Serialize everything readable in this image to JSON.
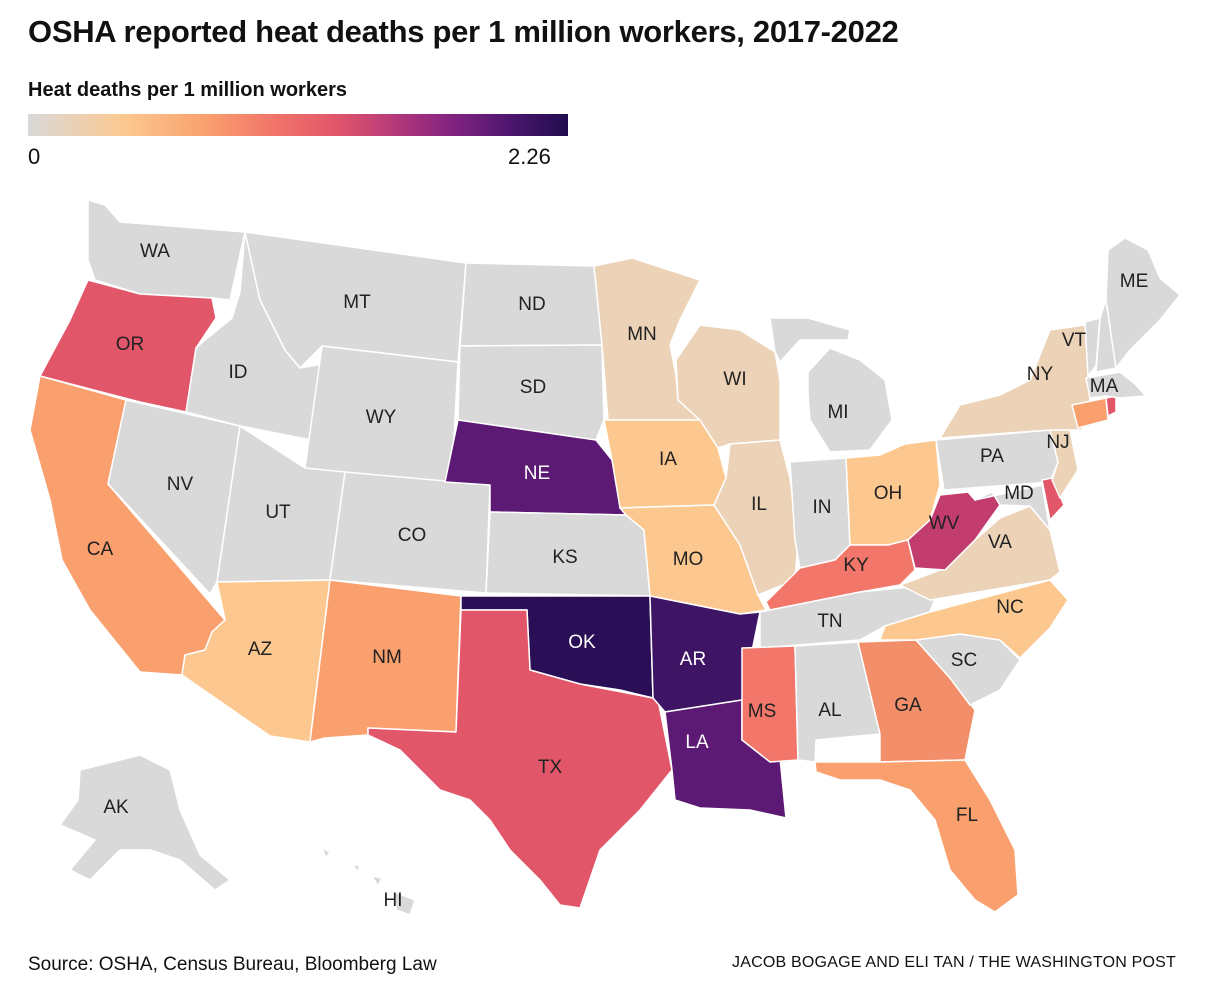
{
  "title": "OSHA reported heat deaths per 1 million workers, 2017-2022",
  "legend": {
    "title": "Heat deaths per 1 million workers",
    "min_label": "0",
    "max_label": "2.26",
    "scale_min": 0,
    "scale_max": 2.26,
    "colors": [
      "#d9d9d9",
      "#fcc88f",
      "#f9a06e",
      "#f2766a",
      "#e2566a",
      "#b5387a",
      "#852481",
      "#4e166f",
      "#200c4e"
    ]
  },
  "chart_data": {
    "type": "choropleth",
    "metric": "Heat deaths per 1 million workers",
    "range": [
      0,
      2.26
    ],
    "states": [
      {
        "code": "WA",
        "fill": "#d9d9d9",
        "value": 0
      },
      {
        "code": "OR",
        "fill": "#e2566a",
        "value": 1.2
      },
      {
        "code": "CA",
        "fill": "#f9a06e",
        "value": 0.5
      },
      {
        "code": "ID",
        "fill": "#d9d9d9",
        "value": 0
      },
      {
        "code": "NV",
        "fill": "#d9d9d9",
        "value": 0
      },
      {
        "code": "MT",
        "fill": "#d9d9d9",
        "value": 0
      },
      {
        "code": "WY",
        "fill": "#d9d9d9",
        "value": 0
      },
      {
        "code": "UT",
        "fill": "#d9d9d9",
        "value": 0
      },
      {
        "code": "AZ",
        "fill": "#fcc88f",
        "value": 0.35
      },
      {
        "code": "CO",
        "fill": "#d9d9d9",
        "value": 0
      },
      {
        "code": "NM",
        "fill": "#f9a06e",
        "value": 0.55
      },
      {
        "code": "ND",
        "fill": "#d9d9d9",
        "value": 0
      },
      {
        "code": "SD",
        "fill": "#d9d9d9",
        "value": 0
      },
      {
        "code": "NE",
        "fill": "#5c1a75",
        "value": 1.9
      },
      {
        "code": "KS",
        "fill": "#d9d9d9",
        "value": 0
      },
      {
        "code": "OK",
        "fill": "#2a0f57",
        "value": 2.26
      },
      {
        "code": "TX",
        "fill": "#e2566a",
        "value": 1.2
      },
      {
        "code": "MN",
        "fill": "#ecd3b8",
        "value": 0.15
      },
      {
        "code": "IA",
        "fill": "#fcc88f",
        "value": 0.35
      },
      {
        "code": "MO",
        "fill": "#fcc88f",
        "value": 0.35
      },
      {
        "code": "AR",
        "fill": "#3e1565",
        "value": 2.1
      },
      {
        "code": "LA",
        "fill": "#5c1a75",
        "value": 1.9
      },
      {
        "code": "WI",
        "fill": "#ecd3b8",
        "value": 0.15
      },
      {
        "code": "IL",
        "fill": "#ecd3b8",
        "value": 0.15
      },
      {
        "code": "MI",
        "fill": "#d9d9d9",
        "value": 0
      },
      {
        "code": "IN",
        "fill": "#d9d9d9",
        "value": 0
      },
      {
        "code": "OH",
        "fill": "#fcc88f",
        "value": 0.35
      },
      {
        "code": "KY",
        "fill": "#f2766a",
        "value": 0.8
      },
      {
        "code": "TN",
        "fill": "#d9d9d9",
        "value": 0
      },
      {
        "code": "MS",
        "fill": "#f2766a",
        "value": 0.8
      },
      {
        "code": "AL",
        "fill": "#d9d9d9",
        "value": 0
      },
      {
        "code": "GA",
        "fill": "#f28e6a",
        "value": 0.7
      },
      {
        "code": "FL",
        "fill": "#f9a06e",
        "value": 0.55
      },
      {
        "code": "SC",
        "fill": "#d9d9d9",
        "value": 0
      },
      {
        "code": "NC",
        "fill": "#fcc88f",
        "value": 0.4
      },
      {
        "code": "VA",
        "fill": "#ecd3b8",
        "value": 0.15
      },
      {
        "code": "WV",
        "fill": "#c23d6e",
        "value": 1.4
      },
      {
        "code": "PA",
        "fill": "#d9d9d9",
        "value": 0
      },
      {
        "code": "MD",
        "fill": "#d9d9d9",
        "value": 0
      },
      {
        "code": "DE",
        "fill": "#e2566a",
        "value": 1.2
      },
      {
        "code": "NJ",
        "fill": "#ecd3b8",
        "value": 0.15
      },
      {
        "code": "NY",
        "fill": "#ecd3b8",
        "value": 0.15
      },
      {
        "code": "CT",
        "fill": "#f9a06e",
        "value": 0.55
      },
      {
        "code": "RI",
        "fill": "#e2566a",
        "value": 1.2
      },
      {
        "code": "MA",
        "fill": "#d9d9d9",
        "value": 0
      },
      {
        "code": "VT",
        "fill": "#d9d9d9",
        "value": 0
      },
      {
        "code": "NH",
        "fill": "#d9d9d9",
        "value": 0
      },
      {
        "code": "ME",
        "fill": "#d9d9d9",
        "value": 0
      },
      {
        "code": "AK",
        "fill": "#d9d9d9",
        "value": 0
      },
      {
        "code": "HI",
        "fill": "#d9d9d9",
        "value": 0
      }
    ]
  },
  "source": "Source: OSHA, Census Bureau, Bloomberg Law",
  "credit": "JACOB BOGAGE AND ELI TAN / THE WASHINGTON POST"
}
